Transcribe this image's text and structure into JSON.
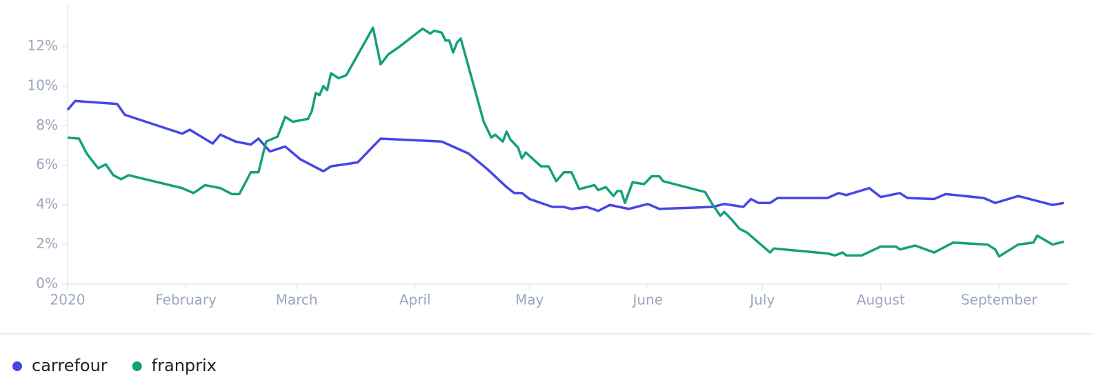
{
  "chart_data": {
    "type": "line",
    "xlim": [
      "2020-01-01",
      "2020-09-19"
    ],
    "xticks": [
      {
        "value": "2020-01-01",
        "label": "2020"
      },
      {
        "value": "2020-02-01",
        "label": "February"
      },
      {
        "value": "2020-03-01",
        "label": "March"
      },
      {
        "value": "2020-04-01",
        "label": "April"
      },
      {
        "value": "2020-05-01",
        "label": "May"
      },
      {
        "value": "2020-06-01",
        "label": "June"
      },
      {
        "value": "2020-07-01",
        "label": "July"
      },
      {
        "value": "2020-08-01",
        "label": "August"
      },
      {
        "value": "2020-09-01",
        "label": "September"
      }
    ],
    "ylim": [
      0,
      14
    ],
    "yticks": [
      {
        "value": 0,
        "label": "0%"
      },
      {
        "value": 2,
        "label": "2%"
      },
      {
        "value": 4,
        "label": "4%"
      },
      {
        "value": 6,
        "label": "6%"
      },
      {
        "value": 8,
        "label": "8%"
      },
      {
        "value": 10,
        "label": "10%"
      },
      {
        "value": 12,
        "label": "12%"
      }
    ],
    "legend": "bottom-left",
    "series": [
      {
        "name": "carrefour",
        "color": "#4646e5",
        "x": [
          "2020-01-01",
          "2020-01-03",
          "2020-01-14",
          "2020-01-16",
          "2020-01-31",
          "2020-02-02",
          "2020-02-08",
          "2020-02-10",
          "2020-02-14",
          "2020-02-18",
          "2020-02-20",
          "2020-02-23",
          "2020-02-27",
          "2020-03-02",
          "2020-03-08",
          "2020-03-10",
          "2020-03-17",
          "2020-03-23",
          "2020-04-08",
          "2020-04-15",
          "2020-04-20",
          "2020-04-25",
          "2020-04-27",
          "2020-04-29",
          "2020-05-01",
          "2020-05-04",
          "2020-05-07",
          "2020-05-10",
          "2020-05-12",
          "2020-05-16",
          "2020-05-19",
          "2020-05-22",
          "2020-05-27",
          "2020-06-01",
          "2020-06-04",
          "2020-06-18",
          "2020-06-21",
          "2020-06-26",
          "2020-06-28",
          "2020-06-30",
          "2020-07-03",
          "2020-07-05",
          "2020-07-18",
          "2020-07-21",
          "2020-07-23",
          "2020-07-29",
          "2020-08-01",
          "2020-08-06",
          "2020-08-08",
          "2020-08-15",
          "2020-08-18",
          "2020-08-28",
          "2020-08-31",
          "2020-09-06",
          "2020-09-11",
          "2020-09-15",
          "2020-09-18"
        ],
        "values": [
          8.8,
          9.25,
          9.1,
          8.55,
          7.6,
          7.8,
          7.1,
          7.55,
          7.2,
          7.05,
          7.35,
          6.7,
          6.95,
          6.3,
          5.7,
          5.95,
          6.15,
          7.35,
          7.2,
          6.6,
          5.8,
          4.9,
          4.6,
          4.6,
          4.3,
          4.1,
          3.9,
          3.9,
          3.8,
          3.9,
          3.7,
          4.0,
          3.8,
          4.05,
          3.8,
          3.9,
          4.05,
          3.9,
          4.3,
          4.1,
          4.1,
          4.35,
          4.35,
          4.6,
          4.5,
          4.85,
          4.4,
          4.6,
          4.35,
          4.3,
          4.55,
          4.35,
          4.1,
          4.45,
          4.2,
          4.0,
          4.1
        ]
      },
      {
        "name": "franprix",
        "color": "#13a07d",
        "x": [
          "2020-01-01",
          "2020-01-04",
          "2020-01-06",
          "2020-01-09",
          "2020-01-11",
          "2020-01-13",
          "2020-01-15",
          "2020-01-17",
          "2020-01-31",
          "2020-02-03",
          "2020-02-06",
          "2020-02-10",
          "2020-02-13",
          "2020-02-15",
          "2020-02-18",
          "2020-02-20",
          "2020-02-22",
          "2020-02-25",
          "2020-02-27",
          "2020-02-29",
          "2020-03-04",
          "2020-03-05",
          "2020-03-06",
          "2020-03-07",
          "2020-03-08",
          "2020-03-09",
          "2020-03-10",
          "2020-03-12",
          "2020-03-14",
          "2020-03-21",
          "2020-03-23",
          "2020-03-25",
          "2020-03-28",
          "2020-04-03",
          "2020-04-05",
          "2020-04-06",
          "2020-04-08",
          "2020-04-09",
          "2020-04-10",
          "2020-04-11",
          "2020-04-12",
          "2020-04-13",
          "2020-04-19",
          "2020-04-21",
          "2020-04-22",
          "2020-04-24",
          "2020-04-25",
          "2020-04-26",
          "2020-04-28",
          "2020-04-29",
          "2020-04-30",
          "2020-05-04",
          "2020-05-06",
          "2020-05-08",
          "2020-05-10",
          "2020-05-12",
          "2020-05-14",
          "2020-05-18",
          "2020-05-19",
          "2020-05-21",
          "2020-05-23",
          "2020-05-24",
          "2020-05-25",
          "2020-05-26",
          "2020-05-28",
          "2020-05-31",
          "2020-06-01",
          "2020-06-02",
          "2020-06-04",
          "2020-06-05",
          "2020-06-16",
          "2020-06-18",
          "2020-06-20",
          "2020-06-21",
          "2020-06-23",
          "2020-06-25",
          "2020-06-27",
          "2020-07-03",
          "2020-07-04",
          "2020-07-18",
          "2020-07-20",
          "2020-07-22",
          "2020-07-23",
          "2020-07-27",
          "2020-08-01",
          "2020-08-05",
          "2020-08-06",
          "2020-08-10",
          "2020-08-15",
          "2020-08-20",
          "2020-08-29",
          "2020-08-31",
          "2020-09-01",
          "2020-09-06",
          "2020-09-08",
          "2020-09-10",
          "2020-09-11",
          "2020-09-15",
          "2020-09-18"
        ],
        "values": [
          7.4,
          7.35,
          6.6,
          5.85,
          6.05,
          5.5,
          5.3,
          5.5,
          4.85,
          4.6,
          5.0,
          4.85,
          4.55,
          4.55,
          5.65,
          5.65,
          7.2,
          7.45,
          8.45,
          8.2,
          8.35,
          8.75,
          9.65,
          9.55,
          10.0,
          9.8,
          10.65,
          10.4,
          10.55,
          12.95,
          11.1,
          11.6,
          12.0,
          12.9,
          12.65,
          12.8,
          12.7,
          12.3,
          12.3,
          11.7,
          12.2,
          12.4,
          8.2,
          7.4,
          7.55,
          7.2,
          7.7,
          7.3,
          6.9,
          6.35,
          6.65,
          5.95,
          5.95,
          5.2,
          5.65,
          5.65,
          4.8,
          5.0,
          4.75,
          4.9,
          4.45,
          4.7,
          4.7,
          4.1,
          5.15,
          5.05,
          5.25,
          5.45,
          5.45,
          5.2,
          4.65,
          4.0,
          3.45,
          3.65,
          3.25,
          2.8,
          2.6,
          1.6,
          1.8,
          1.55,
          1.45,
          1.6,
          1.45,
          1.45,
          1.9,
          1.9,
          1.75,
          1.95,
          1.6,
          2.1,
          2.0,
          1.75,
          1.4,
          2.0,
          2.05,
          2.1,
          2.45,
          2.0,
          2.15
        ]
      }
    ]
  }
}
